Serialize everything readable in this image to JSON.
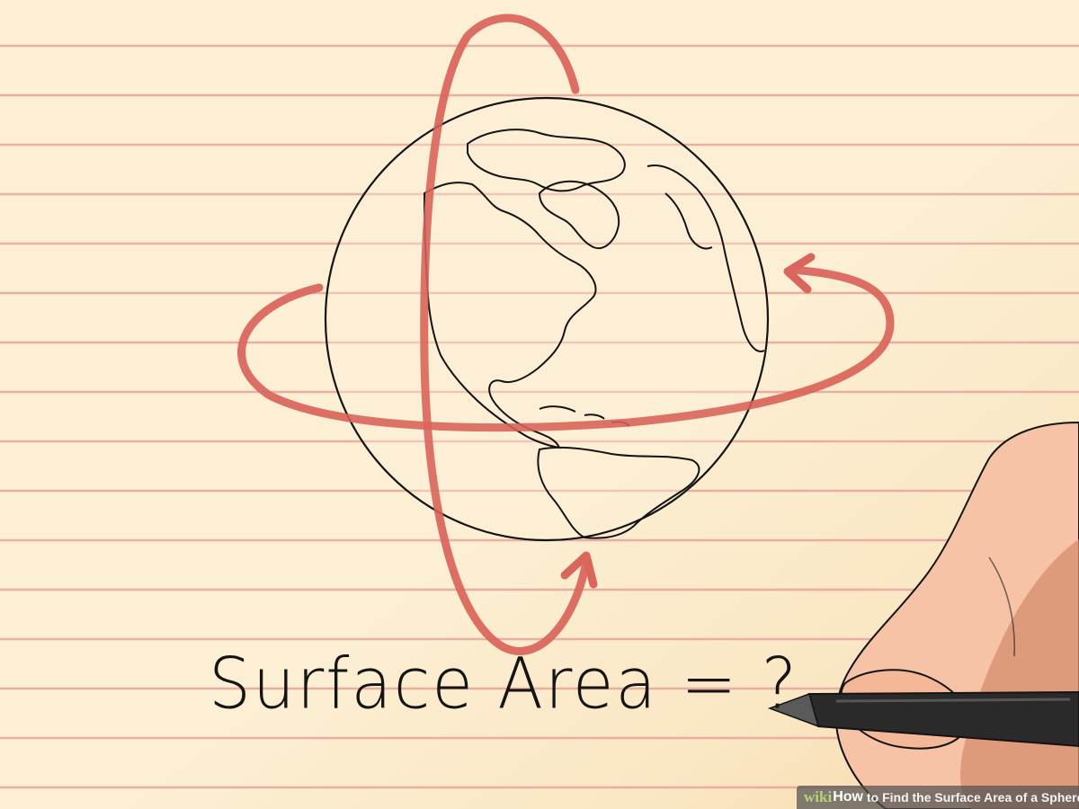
{
  "caption": {
    "text": "Surface Area = ?"
  },
  "watermark": {
    "logo": "wiki",
    "how": "How",
    "title": "to Find the Surface Area of a Sphere"
  },
  "palette": {
    "paper": "#fcefd3",
    "rule_line": "#e9a7a0",
    "arrow_red": "#d9655b",
    "ink": "#141414",
    "skin_light": "#f6c3a7",
    "skin_shadow": "#d48e6d",
    "pen_body": "#2a2a2a"
  },
  "icons": {
    "globe": "globe-icon",
    "vertical_arrow": "rotation-arrow-vertical-icon",
    "horizontal_arrow": "rotation-arrow-horizontal-icon",
    "hand": "hand-icon",
    "pen": "pen-icon"
  }
}
